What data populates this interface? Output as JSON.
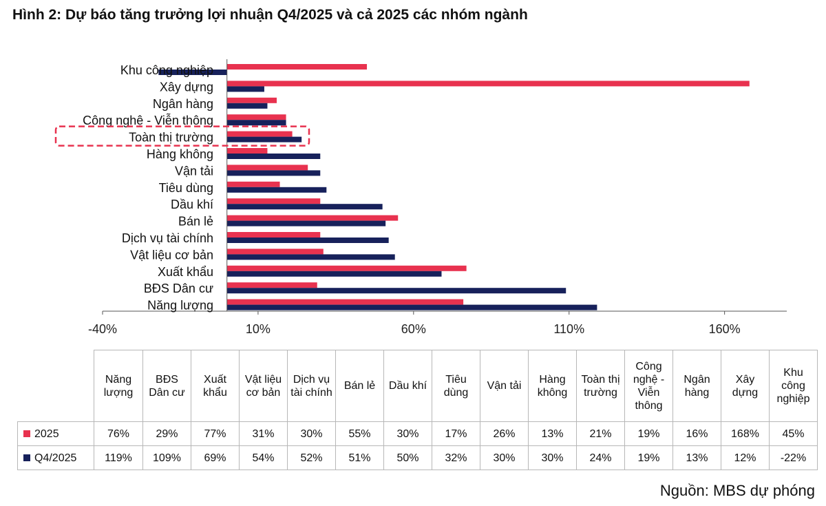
{
  "title": "Hình 2: Dự báo tăng trưởng lợi nhuận Q4/2025 và cả 2025 các nhóm ngành",
  "source": "Nguồn: MBS dự phóng",
  "colors": {
    "series_2025": "#e8324f",
    "series_q4": "#17215b",
    "highlight": "#e8324f"
  },
  "chart_data": {
    "type": "bar",
    "orientation": "horizontal",
    "categories": [
      "Khu công nghiệp",
      "Xây dựng",
      "Ngân hàng",
      "Công nghệ - Viễn thông",
      "Toàn thị trường",
      "Hàng không",
      "Vận tải",
      "Tiêu dùng",
      "Dầu khí",
      "Bán lẻ",
      "Dịch vụ tài chính",
      "Vật liệu cơ bản",
      "Xuất khẩu",
      "BĐS Dân cư",
      "Năng lượng"
    ],
    "series": [
      {
        "name": "2025",
        "values": [
          45,
          168,
          16,
          19,
          21,
          13,
          26,
          17,
          30,
          55,
          30,
          31,
          77,
          29,
          76
        ]
      },
      {
        "name": "Q4/2025",
        "values": [
          -22,
          12,
          13,
          19,
          24,
          30,
          30,
          32,
          50,
          51,
          52,
          54,
          69,
          109,
          119
        ]
      }
    ],
    "xlim": [
      -40,
      180
    ],
    "xticks": [
      -40,
      10,
      60,
      110,
      160
    ],
    "xtick_labels": [
      "-40%",
      "10%",
      "60%",
      "110%",
      "160%"
    ],
    "highlighted_category": "Toàn thị trường"
  },
  "table": {
    "headers": [
      "Năng lượng",
      "BĐS Dân cư",
      "Xuất khẩu",
      "Vật liệu cơ bản",
      "Dịch vụ tài chính",
      "Bán lẻ",
      "Dầu khí",
      "Tiêu dùng",
      "Vận tải",
      "Hàng không",
      "Toàn thị trường",
      "Công nghệ - Viễn thông",
      "Ngân hàng",
      "Xây dựng",
      "Khu công nghiệp"
    ],
    "rows": [
      {
        "label": "2025",
        "values": [
          "76%",
          "29%",
          "77%",
          "31%",
          "30%",
          "55%",
          "30%",
          "17%",
          "26%",
          "13%",
          "21%",
          "19%",
          "16%",
          "168%",
          "45%"
        ]
      },
      {
        "label": "Q4/2025",
        "values": [
          "119%",
          "109%",
          "69%",
          "54%",
          "52%",
          "51%",
          "50%",
          "32%",
          "30%",
          "30%",
          "24%",
          "19%",
          "13%",
          "12%",
          "-22%"
        ]
      }
    ]
  }
}
